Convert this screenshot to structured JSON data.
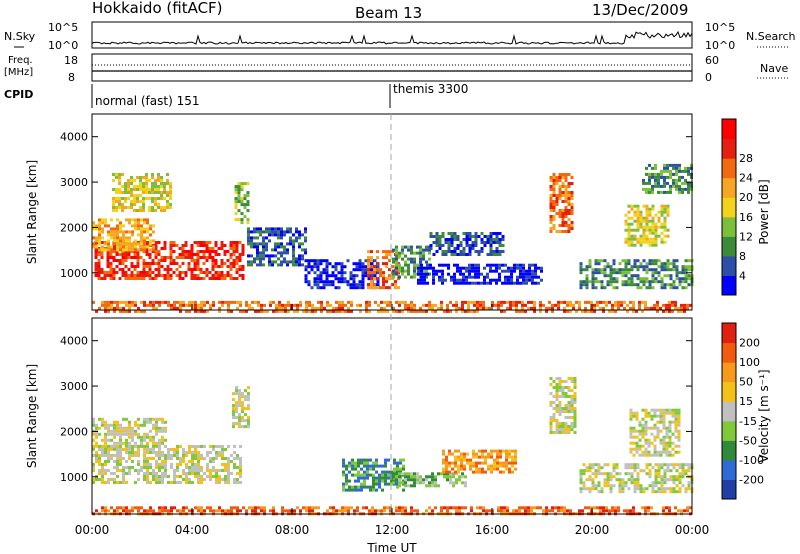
{
  "header": {
    "station": "Hokkaido (fitACF)",
    "beam": "Beam 13",
    "date": "13/Dec/2009"
  },
  "noise_panel": {
    "left_label": "N.Sky",
    "left_ticks": [
      "10^5",
      "10^0"
    ],
    "right_label": "N.Search",
    "right_ticks": [
      "10^5",
      "10^0"
    ]
  },
  "freq_panel": {
    "left_label_1": "Freq.",
    "left_label_2": "[MHz]",
    "left_ticks": [
      "18",
      "8"
    ],
    "right_label": "Nave",
    "right_ticks": [
      "60",
      "0"
    ]
  },
  "cpid_panel": {
    "label": "CPID",
    "modes": [
      "normal (fast) 151",
      "themis 3300"
    ]
  },
  "colors": {
    "power_scale": [
      "#0000ff",
      "#2e4fa8",
      "#3a8c3a",
      "#7cbf3a",
      "#f2d21a",
      "#f5a623",
      "#f26a10",
      "#e62010",
      "#ff0000"
    ],
    "velocity_scale": [
      "#1f3ea6",
      "#2f6ad6",
      "#2f8a3a",
      "#7fc93a",
      "#c0c0c0",
      "#f2c21a",
      "#f59a1a",
      "#f25a10",
      "#e02010"
    ],
    "gridline": "#aaaaaa"
  },
  "chart_data": [
    {
      "type": "heatmap",
      "name": "power",
      "xlabel": "",
      "ylabel": "Slant Range [km]",
      "y_ticks": [
        "1000",
        "2000",
        "3000",
        "4000"
      ],
      "colorbar_label": "Power [dB]",
      "colorbar_ticks": [
        "4",
        "8",
        "12",
        "16",
        "20",
        "24",
        "28"
      ],
      "regions": [
        {
          "t0": 0.1,
          "t1": 6.0,
          "r0": 900,
          "r1": 1700,
          "level": 7
        },
        {
          "t0": 0.0,
          "t1": 2.5,
          "r0": 1500,
          "r1": 2200,
          "level": 5
        },
        {
          "t0": 0.8,
          "t1": 3.2,
          "r0": 2400,
          "r1": 3200,
          "level": 4
        },
        {
          "t0": 5.7,
          "t1": 6.2,
          "r0": 2100,
          "r1": 3000,
          "level": 3
        },
        {
          "t0": 6.2,
          "t1": 8.5,
          "r0": 1200,
          "r1": 2000,
          "level": 1
        },
        {
          "t0": 8.5,
          "t1": 11.5,
          "r0": 700,
          "r1": 1300,
          "level": 0
        },
        {
          "t0": 11.0,
          "t1": 12.3,
          "r0": 700,
          "r1": 1500,
          "level": 6
        },
        {
          "t0": 12.0,
          "t1": 13.5,
          "r0": 900,
          "r1": 1600,
          "level": 2
        },
        {
          "t0": 13.0,
          "t1": 18.0,
          "r0": 800,
          "r1": 1200,
          "level": 0
        },
        {
          "t0": 13.5,
          "t1": 16.5,
          "r0": 1400,
          "r1": 1900,
          "level": 1
        },
        {
          "t0": 18.3,
          "t1": 19.2,
          "r0": 1900,
          "r1": 3200,
          "level": 6
        },
        {
          "t0": 19.5,
          "t1": 24.0,
          "r0": 700,
          "r1": 1300,
          "level": 2
        },
        {
          "t0": 21.3,
          "t1": 23.0,
          "r0": 1600,
          "r1": 2500,
          "level": 4
        },
        {
          "t0": 22.0,
          "t1": 24.0,
          "r0": 2800,
          "r1": 3400,
          "level": 2
        },
        {
          "t0": 0.0,
          "t1": 24.0,
          "r0": 180,
          "r1": 380,
          "level": 6
        }
      ]
    },
    {
      "type": "heatmap",
      "name": "velocity",
      "xlabel": "Time UT",
      "ylabel": "Slant Range [km]",
      "y_ticks": [
        "1000",
        "2000",
        "3000",
        "4000"
      ],
      "x_ticks": [
        "00:00",
        "04:00",
        "08:00",
        "12:00",
        "16:00",
        "20:00",
        "00:00"
      ],
      "x_range_hours": [
        0,
        24
      ],
      "y_range_km": [
        180,
        4500
      ],
      "colorbar_label": "Velocity [m s⁻¹]",
      "colorbar_ticks": [
        "200",
        "100",
        "50",
        "15",
        "-15",
        "-50",
        "-100",
        "-200"
      ],
      "regions": [
        {
          "t0": 0.0,
          "t1": 6.0,
          "r0": 900,
          "r1": 1700,
          "level": 4
        },
        {
          "t0": 0.0,
          "t1": 3.0,
          "r0": 1600,
          "r1": 2300,
          "level": 4
        },
        {
          "t0": 5.6,
          "t1": 6.2,
          "r0": 2100,
          "r1": 3000,
          "level": 4
        },
        {
          "t0": 10.0,
          "t1": 12.5,
          "r0": 700,
          "r1": 1400,
          "level": 2
        },
        {
          "t0": 12.0,
          "t1": 15.0,
          "r0": 800,
          "r1": 1100,
          "level": 3
        },
        {
          "t0": 14.0,
          "t1": 17.0,
          "r0": 1100,
          "r1": 1600,
          "level": 6
        },
        {
          "t0": 18.3,
          "t1": 19.3,
          "r0": 2000,
          "r1": 3200,
          "level": 4
        },
        {
          "t0": 19.5,
          "t1": 24.0,
          "r0": 700,
          "r1": 1300,
          "level": 4
        },
        {
          "t0": 21.5,
          "t1": 23.5,
          "r0": 1500,
          "r1": 2500,
          "level": 4
        },
        {
          "t0": 0.0,
          "t1": 24.0,
          "r0": 180,
          "r1": 350,
          "level": 7
        }
      ]
    }
  ]
}
